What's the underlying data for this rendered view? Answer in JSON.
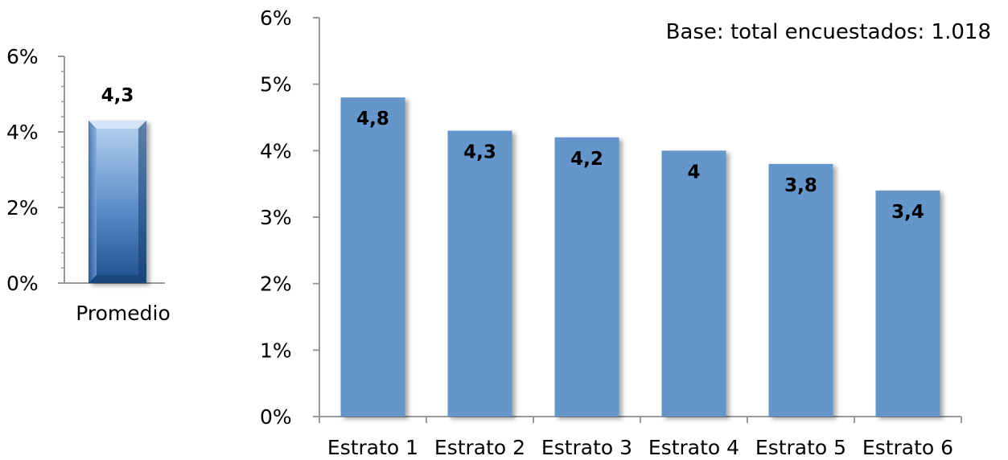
{
  "chart_data": [
    {
      "type": "bar",
      "categories": [
        "Promedio"
      ],
      "values": [
        4.3
      ],
      "value_labels": [
        "4,3"
      ],
      "ylim": [
        0,
        6
      ],
      "yticks": [
        "0%",
        "2%",
        "4%",
        "6%"
      ],
      "grid": false,
      "colors": {
        "bar_light": "#b9d3ef",
        "bar_mid": "#5b8cc8",
        "bar_dark": "#1f4e8c"
      }
    },
    {
      "type": "bar",
      "categories": [
        "Estrato 1",
        "Estrato 2",
        "Estrato 3",
        "Estrato 4",
        "Estrato 5",
        "Estrato 6"
      ],
      "values": [
        4.8,
        4.3,
        4.2,
        4.0,
        3.8,
        3.4
      ],
      "value_labels": [
        "4,8",
        "4,3",
        "4,2",
        "4",
        "3,8",
        "3,4"
      ],
      "ylim": [
        0,
        6
      ],
      "yticks": [
        "0%",
        "1%",
        "2%",
        "3%",
        "4%",
        "5%",
        "6%"
      ],
      "grid": false,
      "annotation": "Base: total encuestados: 1.018",
      "colors": {
        "bar": "#6596cb",
        "axis": "#999999"
      }
    }
  ]
}
